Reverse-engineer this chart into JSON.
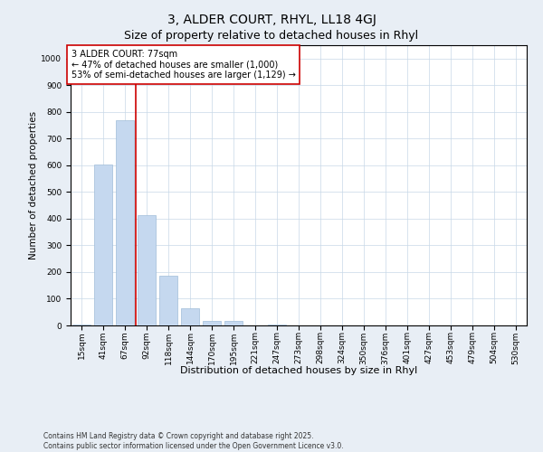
{
  "title": "3, ALDER COURT, RHYL, LL18 4GJ",
  "subtitle": "Size of property relative to detached houses in Rhyl",
  "xlabel": "Distribution of detached houses by size in Rhyl",
  "ylabel": "Number of detached properties",
  "categories": [
    "15sqm",
    "41sqm",
    "67sqm",
    "92sqm",
    "118sqm",
    "144sqm",
    "170sqm",
    "195sqm",
    "221sqm",
    "247sqm",
    "273sqm",
    "298sqm",
    "324sqm",
    "350sqm",
    "376sqm",
    "401sqm",
    "427sqm",
    "453sqm",
    "479sqm",
    "504sqm",
    "530sqm"
  ],
  "values": [
    3,
    603,
    770,
    413,
    185,
    63,
    18,
    18,
    0,
    5,
    0,
    0,
    0,
    0,
    0,
    0,
    0,
    0,
    0,
    0,
    0
  ],
  "bar_color": "#c5d8ef",
  "bar_edge_color": "#a0bcd8",
  "vline_x_index": 2.5,
  "vline_color": "#cc0000",
  "annotation_text": "3 ALDER COURT: 77sqm\n← 47% of detached houses are smaller (1,000)\n53% of semi-detached houses are larger (1,129) →",
  "annotation_box_color": "#ffffff",
  "annotation_box_edge_color": "#cc0000",
  "ylim": [
    0,
    1050
  ],
  "yticks": [
    0,
    100,
    200,
    300,
    400,
    500,
    600,
    700,
    800,
    900,
    1000
  ],
  "background_color": "#e8eef5",
  "plot_bg_color": "#ffffff",
  "footer": "Contains HM Land Registry data © Crown copyright and database right 2025.\nContains public sector information licensed under the Open Government Licence v3.0.",
  "title_fontsize": 10,
  "subtitle_fontsize": 9,
  "xlabel_fontsize": 8,
  "ylabel_fontsize": 7.5,
  "tick_fontsize": 6.5,
  "annotation_fontsize": 7,
  "footer_fontsize": 5.5
}
